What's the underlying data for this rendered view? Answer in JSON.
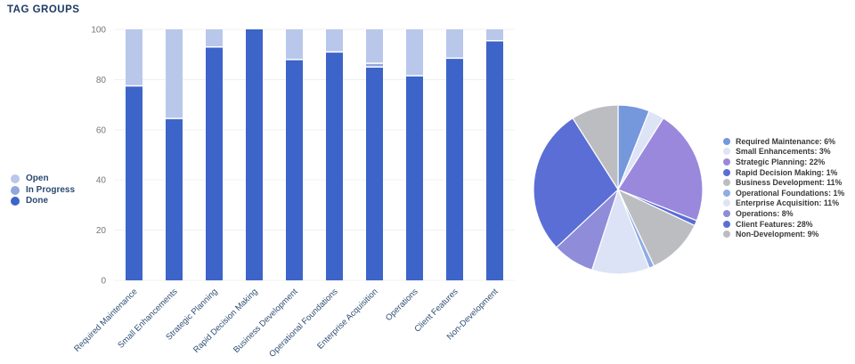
{
  "title": "TAG GROUPS",
  "colors": {
    "background": "#ffffff",
    "grid": "#f0f0f1",
    "title_text": "#1b3a63",
    "axis_tick_text": "#75777b",
    "category_text": "#2e4e74",
    "segment_separator": "#ffffff"
  },
  "chart_data": [
    {
      "type": "bar",
      "stacked": true,
      "title": "",
      "xlabel": "",
      "ylabel": "",
      "ylim": [
        0,
        100
      ],
      "yticks": [
        0,
        20,
        40,
        60,
        80,
        100
      ],
      "grid": true,
      "legend_position": "left",
      "categories": [
        "Required Maintenance",
        "Small Enhancements",
        "Strategic Planning",
        "Rapid Decision Making",
        "Business Development",
        "Operational Foundations",
        "Enterprise Acquisition",
        "Operations",
        "Client Features",
        "Non-Development"
      ],
      "series": [
        {
          "name": "Open",
          "color": "#b9c7ea",
          "values": [
            22.5,
            35.5,
            7,
            0,
            12,
            9,
            13.5,
            18.5,
            11.5,
            4.5
          ]
        },
        {
          "name": "In Progress",
          "color": "#93a7de",
          "values": [
            0,
            0,
            0,
            0,
            0,
            0,
            1.5,
            0,
            0,
            0
          ]
        },
        {
          "name": "Done",
          "color": "#3d64c8",
          "values": [
            77.5,
            64.5,
            93,
            100,
            88,
            91,
            85,
            81.5,
            88.5,
            95.5
          ]
        }
      ]
    },
    {
      "type": "pie",
      "title": "",
      "legend_position": "right",
      "legend_format": "{label}: {value}%",
      "labels": [
        "Required Maintenance",
        "Small Enhancements",
        "Strategic Planning",
        "Rapid Decision Making",
        "Business Development",
        "Operational Foundations",
        "Enterprise Acquisition",
        "Operations",
        "Client Features",
        "Non-Development"
      ],
      "values": [
        6,
        3,
        22,
        1,
        11,
        1,
        11,
        8,
        28,
        9
      ],
      "colors": [
        "#7597dc",
        "#dde4f5",
        "#9a88dd",
        "#5a6ed6",
        "#bcbdc1",
        "#8fade4",
        "#dce3f7",
        "#8f8cd9",
        "#5a6ed6",
        "#bcbdc1"
      ]
    }
  ]
}
